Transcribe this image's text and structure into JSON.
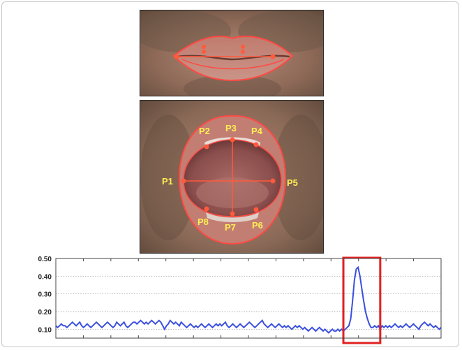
{
  "closed_mouth": {
    "image": "closed-mouth-photo"
  },
  "open_mouth": {
    "image": "open-mouth-photo",
    "labels": [
      "P1",
      "P2",
      "P3",
      "P4",
      "P5",
      "P6",
      "P7",
      "P8"
    ]
  },
  "colors": {
    "landmark": "#ff5a3c",
    "label": "#ffee55",
    "series": "#3a4fe0",
    "highlight": "#e02020",
    "grid": "#9a9a9a"
  },
  "chart_data": {
    "type": "line",
    "title": "",
    "xlabel": "",
    "ylabel": "",
    "ylim": [
      0.05,
      0.5
    ],
    "yticks": [
      0.1,
      0.2,
      0.3,
      0.4,
      0.5
    ],
    "ytick_labels": [
      "0.10",
      "0.20",
      "0.30",
      "0.40",
      "0.50"
    ],
    "grid": true,
    "highlight_x_range": [
      156,
      176
    ],
    "series": [
      {
        "values": [
          0.12,
          0.11,
          0.12,
          0.13,
          0.12,
          0.12,
          0.11,
          0.12,
          0.13,
          0.14,
          0.13,
          0.12,
          0.13,
          0.14,
          0.12,
          0.11,
          0.12,
          0.13,
          0.12,
          0.11,
          0.12,
          0.13,
          0.14,
          0.13,
          0.12,
          0.11,
          0.12,
          0.13,
          0.14,
          0.13,
          0.12,
          0.11,
          0.12,
          0.14,
          0.13,
          0.12,
          0.13,
          0.14,
          0.12,
          0.11,
          0.12,
          0.13,
          0.14,
          0.14,
          0.13,
          0.14,
          0.15,
          0.14,
          0.13,
          0.14,
          0.13,
          0.14,
          0.15,
          0.14,
          0.13,
          0.14,
          0.15,
          0.14,
          0.12,
          0.1,
          0.12,
          0.13,
          0.15,
          0.14,
          0.13,
          0.14,
          0.13,
          0.12,
          0.14,
          0.13,
          0.12,
          0.11,
          0.12,
          0.13,
          0.12,
          0.11,
          0.12,
          0.11,
          0.12,
          0.13,
          0.12,
          0.11,
          0.12,
          0.13,
          0.12,
          0.11,
          0.12,
          0.13,
          0.12,
          0.13,
          0.12,
          0.13,
          0.14,
          0.12,
          0.11,
          0.12,
          0.13,
          0.12,
          0.11,
          0.12,
          0.13,
          0.12,
          0.11,
          0.12,
          0.13,
          0.14,
          0.13,
          0.12,
          0.11,
          0.12,
          0.13,
          0.14,
          0.15,
          0.13,
          0.12,
          0.11,
          0.12,
          0.13,
          0.12,
          0.11,
          0.12,
          0.13,
          0.12,
          0.11,
          0.12,
          0.11,
          0.12,
          0.11,
          0.1,
          0.11,
          0.12,
          0.11,
          0.12,
          0.11,
          0.1,
          0.11,
          0.1,
          0.09,
          0.1,
          0.11,
          0.1,
          0.09,
          0.1,
          0.11,
          0.1,
          0.09,
          0.1,
          0.09,
          0.08,
          0.09,
          0.1,
          0.09,
          0.09,
          0.1,
          0.09,
          0.1,
          0.09,
          0.1,
          0.11,
          0.12,
          0.16,
          0.26,
          0.38,
          0.44,
          0.45,
          0.4,
          0.33,
          0.26,
          0.2,
          0.16,
          0.13,
          0.11,
          0.11,
          0.12,
          0.11,
          0.12,
          0.1,
          0.12,
          0.11,
          0.12,
          0.11,
          0.12,
          0.11,
          0.12,
          0.13,
          0.12,
          0.11,
          0.12,
          0.11,
          0.12,
          0.13,
          0.12,
          0.11,
          0.12,
          0.13,
          0.12,
          0.11,
          0.1,
          0.12,
          0.13,
          0.14,
          0.13,
          0.12,
          0.13,
          0.12,
          0.11,
          0.12,
          0.11,
          0.1,
          0.11
        ]
      }
    ]
  }
}
